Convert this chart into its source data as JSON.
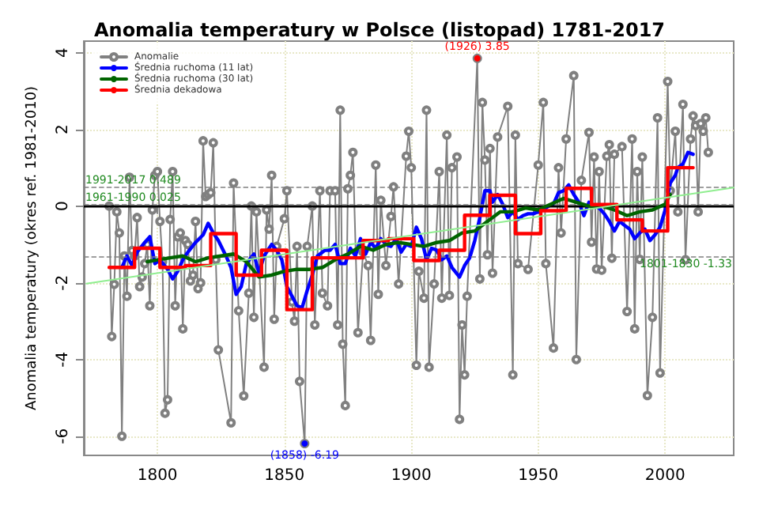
{
  "chart_data": {
    "type": "line",
    "title": "Anomalia temperatury w Polsce (listopad) 1781-2017",
    "ylabel": "Anomalia temperatury (okres ref. 1981-2010)",
    "xlim": [
      1771,
      2027
    ],
    "xticks": [
      1800,
      1850,
      1900,
      1950,
      2000
    ],
    "ylim": [
      -6.5,
      4.3
    ],
    "yticks": [
      -6,
      -4,
      -2,
      0,
      2,
      4
    ],
    "grid": true,
    "legend": "top left",
    "series": [
      {
        "name": "Anomalie",
        "color": "#808080",
        "marker": "circle",
        "x": [
          1781,
          1782,
          1783,
          1784,
          1785,
          1786,
          1787,
          1788,
          1789,
          1790,
          1791,
          1792,
          1793,
          1794,
          1795,
          1796,
          1797,
          1798,
          1799,
          1800,
          1801,
          1802,
          1803,
          1804,
          1805,
          1806,
          1807,
          1808,
          1809,
          1810,
          1811,
          1812,
          1813,
          1814,
          1815,
          1816,
          1817,
          1818,
          1819,
          1820,
          1821,
          1822,
          1823,
          1824,
          1829,
          1830,
          1832,
          1834,
          1836,
          1837,
          1838,
          1839,
          1842,
          1843,
          1844,
          1845,
          1846,
          1847,
          1850,
          1851,
          1853,
          1854,
          1855,
          1856,
          1858,
          1859,
          1861,
          1862,
          1864,
          1865,
          1867,
          1868,
          1870,
          1871,
          1872,
          1873,
          1874,
          1875,
          1876,
          1877,
          1879,
          1881,
          1883,
          1884,
          1886,
          1887,
          1888,
          1890,
          1892,
          1893,
          1895,
          1898,
          1899,
          1900,
          1902,
          1903,
          1905,
          1906,
          1907,
          1909,
          1911,
          1912,
          1914,
          1915,
          1916,
          1918,
          1919,
          1920,
          1921,
          1922,
          1926,
          1927,
          1928,
          1929,
          1930,
          1931,
          1932,
          1934,
          1938,
          1940,
          1941,
          1942,
          1946,
          1950,
          1952,
          1953,
          1956,
          1958,
          1959,
          1961,
          1964,
          1965,
          1967,
          1970,
          1971,
          1972,
          1973,
          1974,
          1975,
          1977,
          1978,
          1979,
          1980,
          1983,
          1985,
          1987,
          1988,
          1989,
          1990,
          1991,
          1993,
          1995,
          1997,
          1998,
          2001,
          2002,
          2004,
          2005,
          2007,
          2008,
          2010,
          2011,
          2012,
          2013,
          2014,
          2015,
          2016,
          2017
        ],
        "values": [
          0.0,
          -3.4,
          -2.04,
          -0.15,
          -0.7,
          -6.0,
          -1.3,
          -2.35,
          0.75,
          -1.16,
          -1.3,
          -0.3,
          -2.1,
          -1.85,
          -1.5,
          -1.0,
          -2.6,
          -0.1,
          0.8,
          0.9,
          -0.4,
          -1.45,
          -5.4,
          -5.05,
          -0.35,
          0.9,
          -2.6,
          -0.8,
          -0.7,
          -3.2,
          -0.9,
          -1.0,
          -1.95,
          -1.8,
          -0.4,
          -2.15,
          -2.0,
          1.7,
          0.25,
          0.3,
          0.35,
          1.65,
          -1.4,
          -3.75,
          -5.65,
          0.6,
          -2.73,
          -4.95,
          -2.27,
          0.0,
          -2.9,
          -0.15,
          -4.2,
          -0.1,
          -0.6,
          0.8,
          -2.95,
          -1.05,
          -0.33,
          0.4,
          -2.5,
          -3.0,
          -1.05,
          -4.57,
          -6.19,
          -1.05,
          0.0,
          -3.1,
          0.4,
          -2.27,
          -2.6,
          0.4,
          0.4,
          -3.1,
          2.5,
          -3.6,
          -5.2,
          0.45,
          0.8,
          1.4,
          -3.3,
          -1.2,
          -1.55,
          -3.5,
          1.07,
          -2.3,
          0.15,
          -1.55,
          -0.27,
          0.5,
          -2.03,
          1.3,
          1.95,
          1.0,
          -4.15,
          -1.7,
          -2.4,
          2.5,
          -4.2,
          -2.03,
          0.9,
          -2.4,
          1.85,
          -2.33,
          1.0,
          1.28,
          -5.56,
          -3.1,
          -4.4,
          -2.35,
          3.85,
          -1.9,
          2.7,
          1.2,
          -1.27,
          1.5,
          -1.75,
          1.8,
          2.6,
          -4.4,
          1.85,
          -1.5,
          -1.65,
          1.07,
          2.7,
          -1.5,
          -3.7,
          1.0,
          -0.7,
          1.75,
          3.4,
          -4.0,
          0.67,
          1.92,
          -0.94,
          1.28,
          -1.64,
          0.9,
          -1.67,
          1.3,
          1.6,
          -1.36,
          1.35,
          1.55,
          -2.75,
          1.75,
          -3.2,
          0.9,
          -1.39,
          1.28,
          -4.94,
          -2.9,
          2.3,
          -4.35,
          3.25,
          0.4,
          1.95,
          -0.15,
          2.65,
          -1.4,
          1.75,
          2.35,
          2.1,
          -0.15,
          2.15,
          1.95,
          2.3,
          1.4
        ]
      },
      {
        "name": "Średnia ruchoma (11 lat)",
        "color": "#0000ff",
        "marker": "none",
        "x": [
          1786,
          1788,
          1790,
          1792,
          1795,
          1797,
          1799,
          1801,
          1804,
          1806,
          1808,
          1810,
          1812,
          1815,
          1818,
          1820,
          1822,
          1824,
          1827,
          1829,
          1831,
          1833,
          1835,
          1838,
          1840,
          1842,
          1845,
          1847,
          1849,
          1851,
          1853,
          1855,
          1857,
          1859,
          1861,
          1863,
          1866,
          1868,
          1870,
          1872,
          1874,
          1876,
          1878,
          1880,
          1882,
          1884,
          1886,
          1888,
          1890,
          1892,
          1894,
          1896,
          1898,
          1900,
          1902,
          1904,
          1906,
          1908,
          1910,
          1912,
          1914,
          1916,
          1919,
          1921,
          1923,
          1925,
          1927,
          1929,
          1931,
          1932,
          1934,
          1936,
          1938,
          1940,
          1942,
          1944,
          1946,
          1948,
          1950,
          1952,
          1954,
          1956,
          1958,
          1960,
          1962,
          1964,
          1966,
          1968,
          1970,
          1972,
          1974,
          1976,
          1978,
          1980,
          1982,
          1984,
          1986,
          1988,
          1990,
          1992,
          1994,
          1996,
          1998,
          2000,
          2002,
          2004,
          2005,
          2007,
          2009,
          2011
        ],
        "values": [
          -1.6,
          -1.3,
          -1.55,
          -1.2,
          -0.95,
          -0.8,
          -1.5,
          -1.4,
          -1.65,
          -1.9,
          -1.7,
          -1.4,
          -1.2,
          -0.95,
          -0.75,
          -0.45,
          -0.7,
          -0.9,
          -1.3,
          -1.6,
          -2.3,
          -2.1,
          -1.5,
          -1.25,
          -1.75,
          -1.3,
          -1.0,
          -1.15,
          -1.4,
          -2.1,
          -2.35,
          -2.6,
          -2.65,
          -2.2,
          -1.8,
          -1.3,
          -1.15,
          -1.15,
          -1.0,
          -1.5,
          -1.5,
          -1.1,
          -1.3,
          -0.85,
          -1.25,
          -0.95,
          -1.1,
          -0.85,
          -1.0,
          -1.05,
          -0.85,
          -1.2,
          -1.0,
          -1.05,
          -0.55,
          -0.85,
          -1.4,
          -1.1,
          -1.15,
          -1.4,
          -1.3,
          -1.6,
          -1.85,
          -1.55,
          -1.35,
          -0.9,
          -0.3,
          0.4,
          0.4,
          0.1,
          0.3,
          0.05,
          -0.3,
          -0.15,
          -0.35,
          -0.25,
          -0.2,
          -0.2,
          -0.15,
          -0.1,
          0.0,
          0.05,
          0.35,
          0.4,
          0.55,
          0.3,
          0.1,
          -0.25,
          0.1,
          0.0,
          -0.05,
          -0.2,
          -0.4,
          -0.65,
          -0.4,
          -0.5,
          -0.6,
          -0.85,
          -0.7,
          -0.6,
          -0.9,
          -0.75,
          -0.55,
          -0.1,
          0.6,
          0.8,
          1.0,
          1.1,
          1.4,
          1.35
        ]
      },
      {
        "name": "Średnia ruchoma (30 lat)",
        "color": "#006400",
        "marker": "none",
        "x": [
          1796,
          1800,
          1805,
          1810,
          1815,
          1820,
          1825,
          1830,
          1835,
          1840,
          1845,
          1850,
          1855,
          1860,
          1865,
          1870,
          1875,
          1880,
          1885,
          1890,
          1895,
          1900,
          1905,
          1910,
          1915,
          1920,
          1925,
          1930,
          1935,
          1940,
          1945,
          1950,
          1955,
          1960,
          1965,
          1970,
          1975,
          1980,
          1985,
          1990,
          1995,
          2000,
          2002
        ],
        "values": [
          -1.45,
          -1.4,
          -1.35,
          -1.3,
          -1.45,
          -1.35,
          -1.3,
          -1.25,
          -1.45,
          -1.85,
          -1.8,
          -1.7,
          -1.65,
          -1.65,
          -1.6,
          -1.4,
          -1.25,
          -1.05,
          -1.15,
          -1.0,
          -0.95,
          -1.0,
          -1.05,
          -0.95,
          -0.9,
          -0.7,
          -0.65,
          -0.4,
          -0.15,
          -0.15,
          -0.05,
          -0.1,
          0.05,
          0.2,
          0.1,
          0.0,
          0.0,
          -0.1,
          -0.25,
          -0.15,
          -0.1,
          0.05,
          0.3
        ]
      },
      {
        "name": "Średnia dekadowa",
        "type": "step",
        "color": "#ff0000",
        "marker": "none",
        "x": [
          1781,
          1791,
          1801,
          1811,
          1821,
          1831,
          1841,
          1851,
          1861,
          1871,
          1881,
          1891,
          1901,
          1911,
          1921,
          1931,
          1941,
          1951,
          1961,
          1971,
          1981,
          1991,
          2001,
          2011
        ],
        "values": [
          -1.6,
          -1.1,
          -1.6,
          -1.55,
          -0.72,
          -1.8,
          -1.15,
          -2.7,
          -1.35,
          -1.35,
          -0.9,
          -0.85,
          -1.42,
          -1.15,
          -0.24,
          0.28,
          -0.72,
          -0.12,
          0.46,
          0.04,
          -0.36,
          -0.65,
          1.0,
          1.0
        ]
      },
      {
        "color": "#90ee90",
        "marker": "none",
        "x": [
          1772,
          2027
        ],
        "values": [
          -2.02,
          0.48
        ]
      }
    ],
    "ref_lines": [
      {
        "axis": "y",
        "value": 0,
        "color": "#000000",
        "line_style": "solid"
      },
      {
        "axis": "y",
        "value": 0.489,
        "label": "1991-2017 0.489",
        "color": "#808080",
        "line_style": "dashed"
      },
      {
        "axis": "y",
        "value": 0.025,
        "label": "1961-1990 0.025",
        "color": "#808080",
        "line_style": "dashed"
      },
      {
        "axis": "y",
        "value": -1.33,
        "label": "1801-1830 -1.33",
        "color": "#808080",
        "line_style": "dashed"
      }
    ],
    "annotations": [
      {
        "text": "(1926) 3.85",
        "x": 1926,
        "y": 3.85
      },
      {
        "text": "(1858) -6.19",
        "x": 1858,
        "y": -6.19
      }
    ]
  }
}
